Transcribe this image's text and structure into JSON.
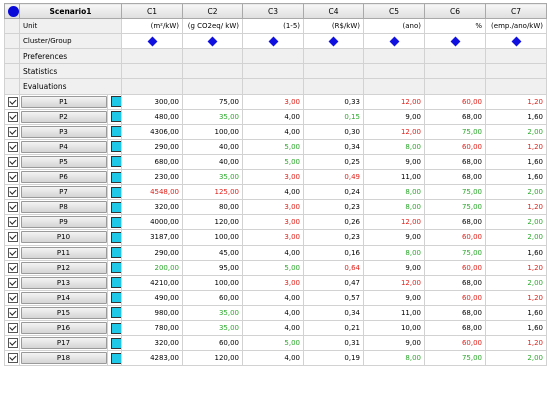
{
  "colors": {
    "red": "#e0201a",
    "green": "#2aa82a",
    "black": "#000000",
    "swatch": "#1ec8e6",
    "marker": "#1010e0"
  },
  "header": {
    "corner_icon": "blue-circle-icon",
    "scenario": "Scenario1",
    "columns": [
      "C1",
      "C2",
      "C3",
      "C4",
      "C5",
      "C6",
      "C7"
    ]
  },
  "unit_row": {
    "label": "Unit",
    "units": [
      "(m²/kW)",
      "(g CO2eq/ kW)",
      "(1-5)",
      "(R$/kW)",
      "(ano)",
      "%",
      "(emp./ano/kW)"
    ]
  },
  "cluster_row": {
    "label": "Cluster/Group",
    "marker_icon": "blue-diamond-icon"
  },
  "sections": [
    "Preferences",
    "Statistics",
    "Evaluations"
  ],
  "rows": [
    {
      "name": "P1",
      "v": [
        "300,00",
        "75,00",
        "3,00",
        "0,33",
        "12,00",
        "60,00",
        "1,20"
      ],
      "c": [
        "k",
        "k",
        "r",
        "k",
        "r",
        "r",
        "r"
      ]
    },
    {
      "name": "P2",
      "v": [
        "480,00",
        "35,00",
        "4,00",
        "0,15",
        "9,00",
        "68,00",
        "1,60"
      ],
      "c": [
        "k",
        "g",
        "k",
        "g",
        "k",
        "k",
        "k"
      ]
    },
    {
      "name": "P3",
      "v": [
        "4306,00",
        "100,00",
        "4,00",
        "0,30",
        "12,00",
        "75,00",
        "2,00"
      ],
      "c": [
        "k",
        "k",
        "k",
        "k",
        "r",
        "g",
        "g"
      ]
    },
    {
      "name": "P4",
      "v": [
        "290,00",
        "40,00",
        "5,00",
        "0,34",
        "8,00",
        "60,00",
        "1,20"
      ],
      "c": [
        "k",
        "k",
        "g",
        "k",
        "g",
        "r",
        "r"
      ]
    },
    {
      "name": "P5",
      "v": [
        "680,00",
        "40,00",
        "5,00",
        "0,25",
        "9,00",
        "68,00",
        "1,60"
      ],
      "c": [
        "k",
        "k",
        "g",
        "k",
        "k",
        "k",
        "k"
      ]
    },
    {
      "name": "P6",
      "v": [
        "230,00",
        "35,00",
        "3,00",
        "0,49",
        "11,00",
        "68,00",
        "1,60"
      ],
      "c": [
        "k",
        "g",
        "r",
        "r",
        "k",
        "k",
        "k"
      ]
    },
    {
      "name": "P7",
      "v": [
        "4548,00",
        "125,00",
        "4,00",
        "0,24",
        "8,00",
        "75,00",
        "2,00"
      ],
      "c": [
        "r",
        "r",
        "k",
        "k",
        "g",
        "g",
        "g"
      ]
    },
    {
      "name": "P8",
      "v": [
        "320,00",
        "80,00",
        "3,00",
        "0,23",
        "8,00",
        "75,00",
        "1,20"
      ],
      "c": [
        "k",
        "k",
        "r",
        "k",
        "g",
        "g",
        "r"
      ]
    },
    {
      "name": "P9",
      "v": [
        "4000,00",
        "120,00",
        "3,00",
        "0,26",
        "12,00",
        "68,00",
        "2,00"
      ],
      "c": [
        "k",
        "k",
        "r",
        "k",
        "r",
        "k",
        "g"
      ]
    },
    {
      "name": "P10",
      "v": [
        "3187,00",
        "100,00",
        "3,00",
        "0,23",
        "9,00",
        "60,00",
        "2,00"
      ],
      "c": [
        "k",
        "k",
        "r",
        "k",
        "k",
        "r",
        "g"
      ]
    },
    {
      "name": "P11",
      "v": [
        "290,00",
        "45,00",
        "4,00",
        "0,16",
        "8,00",
        "75,00",
        "1,60"
      ],
      "c": [
        "k",
        "k",
        "k",
        "k",
        "g",
        "g",
        "k"
      ]
    },
    {
      "name": "P12",
      "v": [
        "200,00",
        "95,00",
        "5,00",
        "0,64",
        "9,00",
        "60,00",
        "1,20"
      ],
      "c": [
        "g",
        "k",
        "g",
        "r",
        "k",
        "r",
        "r"
      ]
    },
    {
      "name": "P13",
      "v": [
        "4210,00",
        "100,00",
        "3,00",
        "0,47",
        "12,00",
        "68,00",
        "2,00"
      ],
      "c": [
        "k",
        "k",
        "r",
        "k",
        "r",
        "k",
        "g"
      ]
    },
    {
      "name": "P14",
      "v": [
        "490,00",
        "60,00",
        "4,00",
        "0,57",
        "9,00",
        "60,00",
        "1,20"
      ],
      "c": [
        "k",
        "k",
        "k",
        "k",
        "k",
        "r",
        "r"
      ]
    },
    {
      "name": "P15",
      "v": [
        "980,00",
        "35,00",
        "4,00",
        "0,34",
        "11,00",
        "68,00",
        "1,60"
      ],
      "c": [
        "k",
        "g",
        "k",
        "k",
        "k",
        "k",
        "k"
      ]
    },
    {
      "name": "P16",
      "v": [
        "780,00",
        "35,00",
        "4,00",
        "0,21",
        "10,00",
        "68,00",
        "1,60"
      ],
      "c": [
        "k",
        "g",
        "k",
        "k",
        "k",
        "k",
        "k"
      ]
    },
    {
      "name": "P17",
      "v": [
        "320,00",
        "60,00",
        "5,00",
        "0,31",
        "9,00",
        "60,00",
        "1,20"
      ],
      "c": [
        "k",
        "k",
        "g",
        "k",
        "k",
        "r",
        "r"
      ]
    },
    {
      "name": "P18",
      "v": [
        "4283,00",
        "120,00",
        "4,00",
        "0,19",
        "8,00",
        "75,00",
        "2,00"
      ],
      "c": [
        "k",
        "k",
        "k",
        "k",
        "g",
        "g",
        "g"
      ]
    }
  ]
}
